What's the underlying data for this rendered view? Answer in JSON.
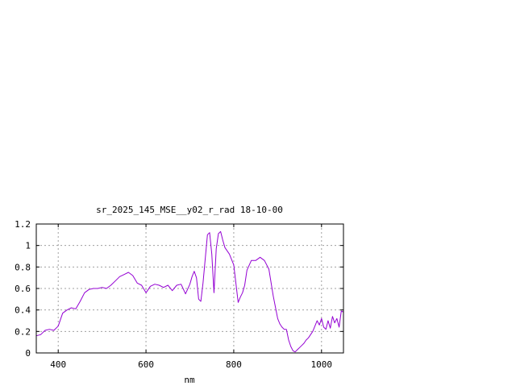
{
  "chart_data": {
    "type": "line",
    "title": "sr_2025_145_MSE__y02_r_rad 18-10-00",
    "xlabel": "nm",
    "ylabel": "",
    "xlim": [
      350,
      1050
    ],
    "ylim": [
      0,
      1.2
    ],
    "x_ticks": [
      400,
      600,
      800,
      1000
    ],
    "x_tick_labels": [
      "400",
      "600",
      "800",
      "1000"
    ],
    "y_ticks": [
      0,
      0.2,
      0.4,
      0.6,
      0.8,
      1.0,
      1.2
    ],
    "y_tick_labels": [
      "0",
      "0.2",
      "0.4",
      "0.6",
      "0.8",
      "1",
      "1.2"
    ],
    "grid": true,
    "legend": "none",
    "line_color": "#9400d3",
    "series": [
      {
        "x": [
          350,
          360,
          370,
          380,
          390,
          400,
          410,
          420,
          430,
          440,
          450,
          460,
          470,
          480,
          490,
          500,
          510,
          520,
          530,
          540,
          550,
          560,
          570,
          580,
          590,
          600,
          610,
          620,
          630,
          640,
          650,
          660,
          670,
          680,
          690,
          700,
          705,
          710,
          715,
          720,
          725,
          730,
          735,
          740,
          745,
          750,
          755,
          760,
          765,
          770,
          775,
          780,
          790,
          800,
          810,
          815,
          820,
          825,
          830,
          840,
          850,
          860,
          870,
          880,
          890,
          900,
          905,
          910,
          915,
          920,
          925,
          930,
          935,
          940,
          945,
          950,
          955,
          960,
          965,
          970,
          975,
          980,
          985,
          990,
          995,
          1000,
          1005,
          1010,
          1015,
          1020,
          1025,
          1030,
          1035,
          1040,
          1045,
          1050
        ],
        "values": [
          0.16,
          0.17,
          0.21,
          0.22,
          0.21,
          0.25,
          0.37,
          0.4,
          0.42,
          0.41,
          0.48,
          0.56,
          0.59,
          0.6,
          0.6,
          0.61,
          0.6,
          0.63,
          0.67,
          0.71,
          0.73,
          0.75,
          0.72,
          0.65,
          0.63,
          0.56,
          0.62,
          0.64,
          0.63,
          0.61,
          0.63,
          0.58,
          0.63,
          0.64,
          0.55,
          0.64,
          0.71,
          0.76,
          0.7,
          0.5,
          0.48,
          0.65,
          0.88,
          1.1,
          1.12,
          0.92,
          0.56,
          0.97,
          1.11,
          1.13,
          1.05,
          0.98,
          0.92,
          0.82,
          0.47,
          0.52,
          0.56,
          0.63,
          0.77,
          0.86,
          0.86,
          0.89,
          0.86,
          0.78,
          0.53,
          0.32,
          0.27,
          0.24,
          0.22,
          0.22,
          0.12,
          0.06,
          0.02,
          0.01,
          0.03,
          0.05,
          0.07,
          0.09,
          0.12,
          0.14,
          0.17,
          0.2,
          0.25,
          0.3,
          0.26,
          0.32,
          0.24,
          0.22,
          0.3,
          0.23,
          0.34,
          0.28,
          0.32,
          0.24,
          0.39,
          0.38
        ]
      }
    ]
  }
}
